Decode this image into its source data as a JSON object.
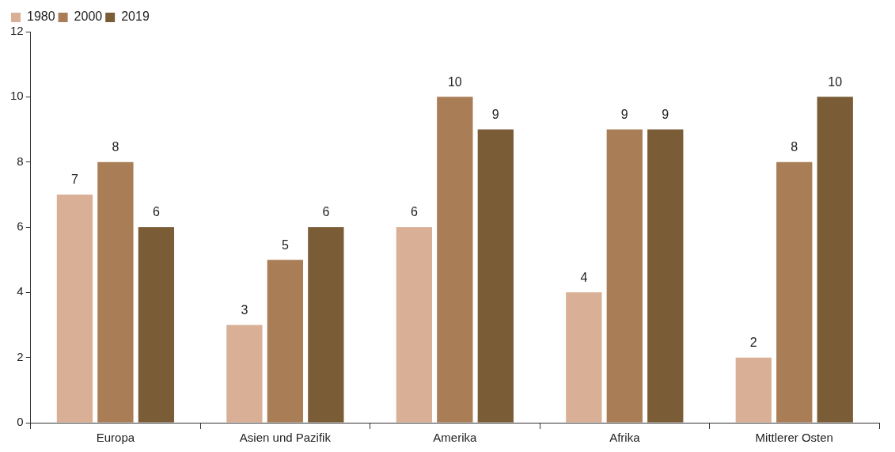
{
  "chart_data": {
    "type": "bar",
    "categories": [
      "Europa",
      "Asien und Pazifik",
      "Amerika",
      "Afrika",
      "Mittlerer Osten"
    ],
    "series": [
      {
        "name": "1980",
        "color": "#d9b095",
        "values": [
          7,
          3,
          6,
          4,
          2
        ]
      },
      {
        "name": "2000",
        "color": "#a97d56",
        "values": [
          8,
          5,
          10,
          9,
          8
        ]
      },
      {
        "name": "2019",
        "color": "#7a5c37",
        "values": [
          6,
          6,
          9,
          9,
          10
        ]
      }
    ],
    "ylim": [
      0,
      12
    ],
    "yticks": [
      0,
      2,
      4,
      6,
      8,
      10,
      12
    ],
    "grid": false,
    "legend": "top left",
    "data_labels": true
  }
}
